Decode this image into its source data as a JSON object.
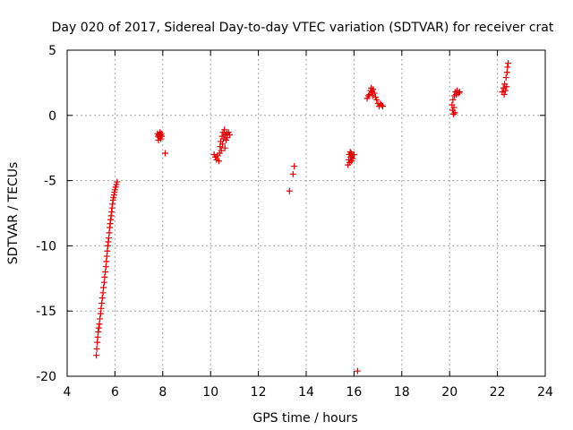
{
  "chart_data": {
    "type": "scatter",
    "title": "Day 020 of 2017, Sidereal Day-to-day VTEC variation (SDTVAR) for receiver crat",
    "xlabel": "GPS time / hours",
    "ylabel": "SDTVAR / TECUs",
    "xlim": [
      4,
      24
    ],
    "ylim": [
      -20,
      5
    ],
    "xticks": [
      4,
      6,
      8,
      10,
      12,
      14,
      16,
      18,
      20,
      22,
      24
    ],
    "yticks": [
      5,
      0,
      -5,
      -10,
      -15,
      -20
    ],
    "xtick_labels": [
      "4",
      "6",
      "8",
      "10",
      "12",
      "14",
      "16",
      "18",
      "20",
      "22",
      "24"
    ],
    "ytick_labels": [
      "5",
      "0",
      "-5",
      "-10",
      "-15",
      "-20"
    ],
    "grid": true,
    "marker": "+",
    "marker_color": "#dd0000",
    "series": [
      {
        "name": "SDTVAR",
        "points": [
          [
            5.22,
            -18.4
          ],
          [
            5.24,
            -17.9
          ],
          [
            5.26,
            -17.4
          ],
          [
            5.28,
            -17.0
          ],
          [
            5.3,
            -16.6
          ],
          [
            5.32,
            -16.3
          ],
          [
            5.35,
            -16.0
          ],
          [
            5.37,
            -15.6
          ],
          [
            5.4,
            -15.2
          ],
          [
            5.42,
            -14.8
          ],
          [
            5.45,
            -14.4
          ],
          [
            5.47,
            -14.0
          ],
          [
            5.5,
            -13.6
          ],
          [
            5.52,
            -13.2
          ],
          [
            5.55,
            -12.8
          ],
          [
            5.57,
            -12.4
          ],
          [
            5.6,
            -12.0
          ],
          [
            5.62,
            -11.6
          ],
          [
            5.64,
            -11.2
          ],
          [
            5.66,
            -10.8
          ],
          [
            5.68,
            -10.4
          ],
          [
            5.7,
            -10.0
          ],
          [
            5.72,
            -9.7
          ],
          [
            5.74,
            -9.4
          ],
          [
            5.76,
            -9.0
          ],
          [
            5.78,
            -8.6
          ],
          [
            5.8,
            -8.3
          ],
          [
            5.82,
            -8.0
          ],
          [
            5.84,
            -7.7
          ],
          [
            5.86,
            -7.4
          ],
          [
            5.88,
            -7.1
          ],
          [
            5.9,
            -6.8
          ],
          [
            5.92,
            -6.5
          ],
          [
            5.94,
            -6.3
          ],
          [
            5.96,
            -6.1
          ],
          [
            5.98,
            -5.9
          ],
          [
            6.0,
            -5.7
          ],
          [
            6.03,
            -5.5
          ],
          [
            6.06,
            -5.3
          ],
          [
            6.09,
            -5.1
          ],
          [
            7.78,
            -1.4
          ],
          [
            7.8,
            -1.6
          ],
          [
            7.82,
            -1.9
          ],
          [
            7.84,
            -1.5
          ],
          [
            7.86,
            -1.7
          ],
          [
            7.88,
            -1.3
          ],
          [
            7.9,
            -1.5
          ],
          [
            7.92,
            -1.8
          ],
          [
            7.94,
            -1.4
          ],
          [
            7.96,
            -1.6
          ],
          [
            8.1,
            -2.9
          ],
          [
            10.15,
            -3.0
          ],
          [
            10.2,
            -3.2
          ],
          [
            10.25,
            -3.4
          ],
          [
            10.3,
            -3.1
          ],
          [
            10.35,
            -3.5
          ],
          [
            10.38,
            -2.9
          ],
          [
            10.4,
            -2.4
          ],
          [
            10.42,
            -2.0
          ],
          [
            10.45,
            -2.7
          ],
          [
            10.48,
            -1.6
          ],
          [
            10.5,
            -2.2
          ],
          [
            10.52,
            -1.3
          ],
          [
            10.55,
            -1.8
          ],
          [
            10.58,
            -1.1
          ],
          [
            10.6,
            -2.5
          ],
          [
            10.62,
            -1.5
          ],
          [
            10.65,
            -1.9
          ],
          [
            10.68,
            -1.4
          ],
          [
            10.7,
            -1.7
          ],
          [
            10.75,
            -1.3
          ],
          [
            10.8,
            -1.5
          ],
          [
            13.3,
            -5.8
          ],
          [
            13.45,
            -4.5
          ],
          [
            13.5,
            -3.9
          ],
          [
            15.75,
            -3.8
          ],
          [
            15.78,
            -3.4
          ],
          [
            15.8,
            -3.0
          ],
          [
            15.82,
            -3.6
          ],
          [
            15.84,
            -2.8
          ],
          [
            15.86,
            -3.2
          ],
          [
            15.88,
            -2.9
          ],
          [
            15.9,
            -3.5
          ],
          [
            15.92,
            -3.1
          ],
          [
            15.95,
            -3.3
          ],
          [
            16.0,
            -3.0
          ],
          [
            16.15,
            -19.6
          ],
          [
            16.55,
            1.3
          ],
          [
            16.6,
            1.5
          ],
          [
            16.65,
            1.6
          ],
          [
            16.7,
            1.9
          ],
          [
            16.72,
            2.1
          ],
          [
            16.75,
            1.8
          ],
          [
            16.78,
            1.5
          ],
          [
            16.8,
            2.0
          ],
          [
            16.85,
            1.7
          ],
          [
            16.9,
            1.4
          ],
          [
            16.95,
            1.2
          ],
          [
            17.0,
            0.9
          ],
          [
            17.05,
            0.7
          ],
          [
            17.1,
            0.9
          ],
          [
            17.15,
            0.8
          ],
          [
            17.2,
            0.7
          ],
          [
            20.1,
            0.8
          ],
          [
            20.12,
            0.4
          ],
          [
            20.14,
            1.2
          ],
          [
            20.16,
            0.1
          ],
          [
            20.18,
            0.6
          ],
          [
            20.2,
            1.5
          ],
          [
            20.22,
            0.2
          ],
          [
            20.25,
            1.8
          ],
          [
            20.28,
            1.6
          ],
          [
            20.32,
            1.9
          ],
          [
            20.38,
            1.7
          ],
          [
            20.42,
            1.8
          ],
          [
            22.2,
            1.8
          ],
          [
            22.25,
            2.1
          ],
          [
            22.28,
            1.6
          ],
          [
            22.3,
            2.4
          ],
          [
            22.33,
            1.9
          ],
          [
            22.36,
            2.9
          ],
          [
            22.38,
            2.2
          ],
          [
            22.4,
            3.3
          ],
          [
            22.42,
            3.7
          ],
          [
            22.45,
            4.0
          ]
        ]
      }
    ]
  }
}
